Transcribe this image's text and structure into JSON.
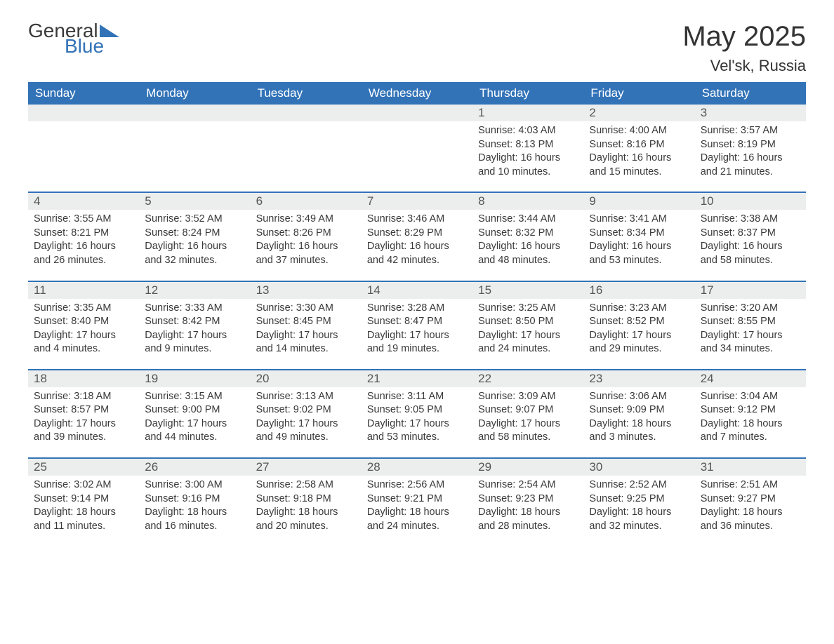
{
  "logo": {
    "part1": "General",
    "part2": "Blue"
  },
  "title": "May 2025",
  "location": "Vel'sk, Russia",
  "colors": {
    "accent": "#3273b8",
    "header_bg": "#3273b8",
    "header_text": "#ffffff",
    "daynum_bg": "#eceeee",
    "text": "#3a3a3a",
    "page_bg": "#ffffff"
  },
  "days_of_week": [
    "Sunday",
    "Monday",
    "Tuesday",
    "Wednesday",
    "Thursday",
    "Friday",
    "Saturday"
  ],
  "first_day_index": 4,
  "days_in_month": 31,
  "labels": {
    "sunrise": "Sunrise",
    "sunset": "Sunset",
    "daylight": "Daylight"
  },
  "days": [
    {
      "n": 1,
      "sunrise": "4:03 AM",
      "sunset": "8:13 PM",
      "daylight": "16 hours and 10 minutes."
    },
    {
      "n": 2,
      "sunrise": "4:00 AM",
      "sunset": "8:16 PM",
      "daylight": "16 hours and 15 minutes."
    },
    {
      "n": 3,
      "sunrise": "3:57 AM",
      "sunset": "8:19 PM",
      "daylight": "16 hours and 21 minutes."
    },
    {
      "n": 4,
      "sunrise": "3:55 AM",
      "sunset": "8:21 PM",
      "daylight": "16 hours and 26 minutes."
    },
    {
      "n": 5,
      "sunrise": "3:52 AM",
      "sunset": "8:24 PM",
      "daylight": "16 hours and 32 minutes."
    },
    {
      "n": 6,
      "sunrise": "3:49 AM",
      "sunset": "8:26 PM",
      "daylight": "16 hours and 37 minutes."
    },
    {
      "n": 7,
      "sunrise": "3:46 AM",
      "sunset": "8:29 PM",
      "daylight": "16 hours and 42 minutes."
    },
    {
      "n": 8,
      "sunrise": "3:44 AM",
      "sunset": "8:32 PM",
      "daylight": "16 hours and 48 minutes."
    },
    {
      "n": 9,
      "sunrise": "3:41 AM",
      "sunset": "8:34 PM",
      "daylight": "16 hours and 53 minutes."
    },
    {
      "n": 10,
      "sunrise": "3:38 AM",
      "sunset": "8:37 PM",
      "daylight": "16 hours and 58 minutes."
    },
    {
      "n": 11,
      "sunrise": "3:35 AM",
      "sunset": "8:40 PM",
      "daylight": "17 hours and 4 minutes."
    },
    {
      "n": 12,
      "sunrise": "3:33 AM",
      "sunset": "8:42 PM",
      "daylight": "17 hours and 9 minutes."
    },
    {
      "n": 13,
      "sunrise": "3:30 AM",
      "sunset": "8:45 PM",
      "daylight": "17 hours and 14 minutes."
    },
    {
      "n": 14,
      "sunrise": "3:28 AM",
      "sunset": "8:47 PM",
      "daylight": "17 hours and 19 minutes."
    },
    {
      "n": 15,
      "sunrise": "3:25 AM",
      "sunset": "8:50 PM",
      "daylight": "17 hours and 24 minutes."
    },
    {
      "n": 16,
      "sunrise": "3:23 AM",
      "sunset": "8:52 PM",
      "daylight": "17 hours and 29 minutes."
    },
    {
      "n": 17,
      "sunrise": "3:20 AM",
      "sunset": "8:55 PM",
      "daylight": "17 hours and 34 minutes."
    },
    {
      "n": 18,
      "sunrise": "3:18 AM",
      "sunset": "8:57 PM",
      "daylight": "17 hours and 39 minutes."
    },
    {
      "n": 19,
      "sunrise": "3:15 AM",
      "sunset": "9:00 PM",
      "daylight": "17 hours and 44 minutes."
    },
    {
      "n": 20,
      "sunrise": "3:13 AM",
      "sunset": "9:02 PM",
      "daylight": "17 hours and 49 minutes."
    },
    {
      "n": 21,
      "sunrise": "3:11 AM",
      "sunset": "9:05 PM",
      "daylight": "17 hours and 53 minutes."
    },
    {
      "n": 22,
      "sunrise": "3:09 AM",
      "sunset": "9:07 PM",
      "daylight": "17 hours and 58 minutes."
    },
    {
      "n": 23,
      "sunrise": "3:06 AM",
      "sunset": "9:09 PM",
      "daylight": "18 hours and 3 minutes."
    },
    {
      "n": 24,
      "sunrise": "3:04 AM",
      "sunset": "9:12 PM",
      "daylight": "18 hours and 7 minutes."
    },
    {
      "n": 25,
      "sunrise": "3:02 AM",
      "sunset": "9:14 PM",
      "daylight": "18 hours and 11 minutes."
    },
    {
      "n": 26,
      "sunrise": "3:00 AM",
      "sunset": "9:16 PM",
      "daylight": "18 hours and 16 minutes."
    },
    {
      "n": 27,
      "sunrise": "2:58 AM",
      "sunset": "9:18 PM",
      "daylight": "18 hours and 20 minutes."
    },
    {
      "n": 28,
      "sunrise": "2:56 AM",
      "sunset": "9:21 PM",
      "daylight": "18 hours and 24 minutes."
    },
    {
      "n": 29,
      "sunrise": "2:54 AM",
      "sunset": "9:23 PM",
      "daylight": "18 hours and 28 minutes."
    },
    {
      "n": 30,
      "sunrise": "2:52 AM",
      "sunset": "9:25 PM",
      "daylight": "18 hours and 32 minutes."
    },
    {
      "n": 31,
      "sunrise": "2:51 AM",
      "sunset": "9:27 PM",
      "daylight": "18 hours and 36 minutes."
    }
  ]
}
